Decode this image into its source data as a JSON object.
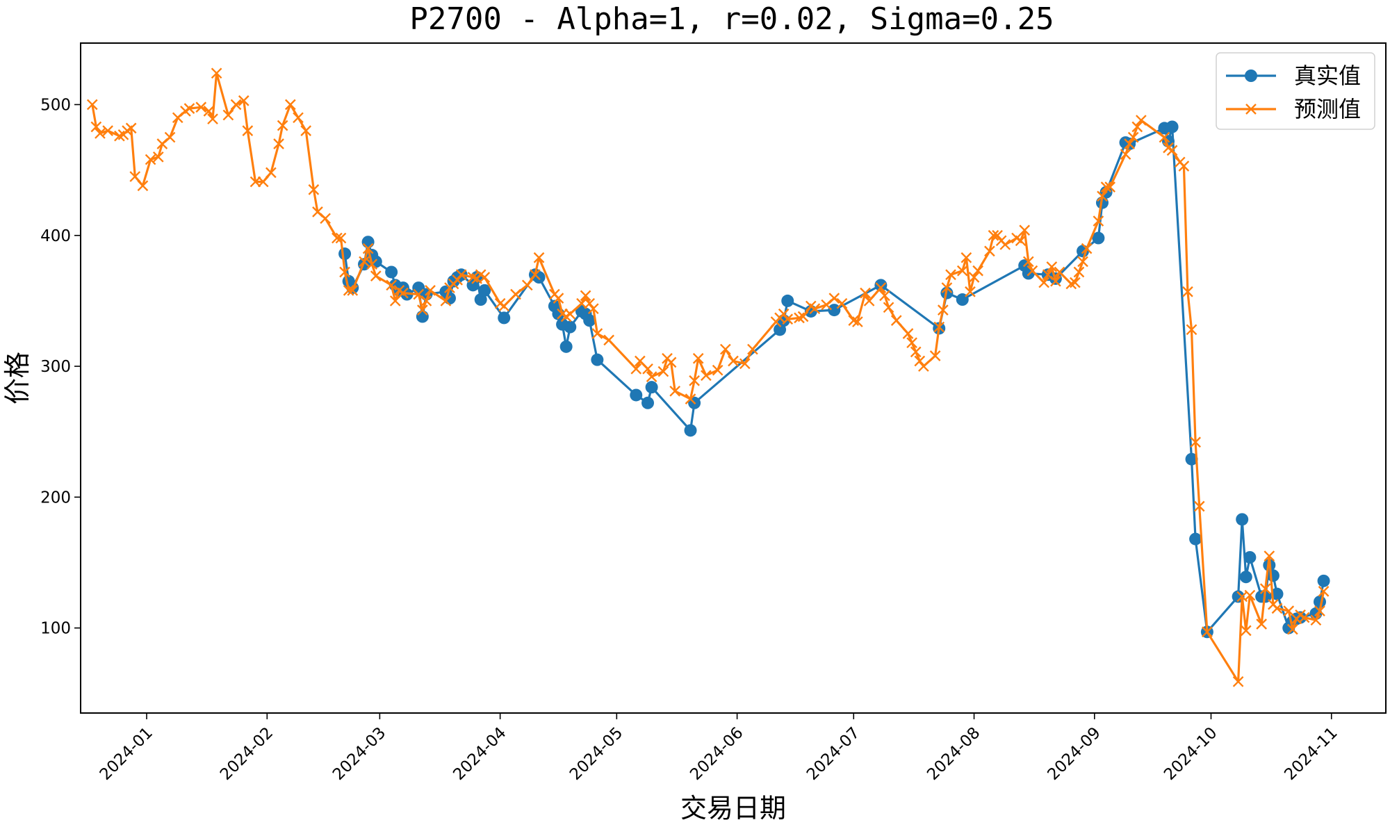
{
  "chart_data": {
    "type": "line",
    "title": "P2700 - Alpha=1, r=0.02, Sigma=0.25",
    "xlabel": "交易日期",
    "ylabel": "价格",
    "xlim": [
      "2023-12-15",
      "2024-11-15"
    ],
    "ylim": [
      35,
      547
    ],
    "x_ticks": [
      "2024-01-01",
      "2024-02-01",
      "2024-03-01",
      "2024-04-01",
      "2024-05-01",
      "2024-06-01",
      "2024-07-01",
      "2024-08-01",
      "2024-09-01",
      "2024-10-01",
      "2024-11-01"
    ],
    "x_tick_labels": [
      "2024-01",
      "2024-02",
      "2024-03",
      "2024-04",
      "2024-05",
      "2024-06",
      "2024-07",
      "2024-08",
      "2024-09",
      "2024-10",
      "2024-11"
    ],
    "y_ticks": [
      100,
      200,
      300,
      400,
      500
    ],
    "grid": false,
    "legend_position": "top-right",
    "series": [
      {
        "name": "真实值",
        "color": "#1f77b4",
        "marker": "circle",
        "points": [
          [
            "2024-02-21",
            386
          ],
          [
            "2024-02-22",
            365
          ],
          [
            "2024-02-23",
            360
          ],
          [
            "2024-02-26",
            378
          ],
          [
            "2024-02-27",
            395
          ],
          [
            "2024-02-28",
            385
          ],
          [
            "2024-02-29",
            380
          ],
          [
            "2024-03-04",
            372
          ],
          [
            "2024-03-05",
            362
          ],
          [
            "2024-03-06",
            358
          ],
          [
            "2024-03-07",
            360
          ],
          [
            "2024-03-08",
            355
          ],
          [
            "2024-03-11",
            360
          ],
          [
            "2024-03-12",
            338
          ],
          [
            "2024-03-13",
            355
          ],
          [
            "2024-03-18",
            357
          ],
          [
            "2024-03-19",
            352
          ],
          [
            "2024-03-20",
            365
          ],
          [
            "2024-03-21",
            368
          ],
          [
            "2024-03-22",
            370
          ],
          [
            "2024-03-25",
            362
          ],
          [
            "2024-03-26",
            368
          ],
          [
            "2024-03-27",
            351
          ],
          [
            "2024-03-28",
            358
          ],
          [
            "2024-04-02",
            337
          ],
          [
            "2024-04-10",
            370
          ],
          [
            "2024-04-11",
            368
          ],
          [
            "2024-04-15",
            346
          ],
          [
            "2024-04-16",
            340
          ],
          [
            "2024-04-17",
            332
          ],
          [
            "2024-04-18",
            315
          ],
          [
            "2024-04-19",
            330
          ],
          [
            "2024-04-22",
            342
          ],
          [
            "2024-04-23",
            340
          ],
          [
            "2024-04-24",
            335
          ],
          [
            "2024-04-26",
            305
          ],
          [
            "2024-05-06",
            278
          ],
          [
            "2024-05-09",
            272
          ],
          [
            "2024-05-10",
            284
          ],
          [
            "2024-05-20",
            251
          ],
          [
            "2024-05-21",
            272
          ],
          [
            "2024-06-12",
            328
          ],
          [
            "2024-06-13",
            335
          ],
          [
            "2024-06-14",
            350
          ],
          [
            "2024-06-20",
            342
          ],
          [
            "2024-06-26",
            343
          ],
          [
            "2024-07-08",
            362
          ],
          [
            "2024-07-23",
            329
          ],
          [
            "2024-07-25",
            356
          ],
          [
            "2024-07-29",
            351
          ],
          [
            "2024-08-14",
            377
          ],
          [
            "2024-08-15",
            371
          ],
          [
            "2024-08-20",
            370
          ],
          [
            "2024-08-22",
            367
          ],
          [
            "2024-08-29",
            388
          ],
          [
            "2024-09-02",
            398
          ],
          [
            "2024-09-03",
            425
          ],
          [
            "2024-09-04",
            433
          ],
          [
            "2024-09-09",
            471
          ],
          [
            "2024-09-10",
            470
          ],
          [
            "2024-09-19",
            482
          ],
          [
            "2024-09-20",
            472
          ],
          [
            "2024-09-21",
            483
          ],
          [
            "2024-09-26",
            229
          ],
          [
            "2024-09-27",
            168
          ],
          [
            "2024-09-30",
            97
          ],
          [
            "2024-10-08",
            124
          ],
          [
            "2024-10-09",
            183
          ],
          [
            "2024-10-10",
            139
          ],
          [
            "2024-10-11",
            154
          ],
          [
            "2024-10-14",
            124
          ],
          [
            "2024-10-15",
            124
          ],
          [
            "2024-10-16",
            148
          ],
          [
            "2024-10-17",
            140
          ],
          [
            "2024-10-18",
            126
          ],
          [
            "2024-10-21",
            100
          ],
          [
            "2024-10-22",
            105
          ],
          [
            "2024-10-23",
            107
          ],
          [
            "2024-10-24",
            108
          ],
          [
            "2024-10-28",
            111
          ],
          [
            "2024-10-29",
            120
          ],
          [
            "2024-10-30",
            136
          ]
        ]
      },
      {
        "name": "预测值",
        "color": "#ff7f0e",
        "marker": "x",
        "points": [
          [
            "2023-12-18",
            500
          ],
          [
            "2023-12-19",
            483
          ],
          [
            "2023-12-20",
            478
          ],
          [
            "2023-12-22",
            480
          ],
          [
            "2023-12-25",
            476
          ],
          [
            "2023-12-26",
            477
          ],
          [
            "2023-12-27",
            480
          ],
          [
            "2023-12-28",
            482
          ],
          [
            "2023-12-29",
            445
          ],
          [
            "2023-12-31",
            438
          ],
          [
            "2024-01-02",
            458
          ],
          [
            "2024-01-04",
            460
          ],
          [
            "2024-01-05",
            470
          ],
          [
            "2024-01-07",
            475
          ],
          [
            "2024-01-09",
            490
          ],
          [
            "2024-01-11",
            495
          ],
          [
            "2024-01-12",
            497
          ],
          [
            "2024-01-15",
            498
          ],
          [
            "2024-01-17",
            495
          ],
          [
            "2024-01-18",
            489
          ],
          [
            "2024-01-19",
            524
          ],
          [
            "2024-01-22",
            492
          ],
          [
            "2024-01-24",
            500
          ],
          [
            "2024-01-26",
            503
          ],
          [
            "2024-01-27",
            480
          ],
          [
            "2024-01-29",
            441
          ],
          [
            "2024-01-31",
            441
          ],
          [
            "2024-02-02",
            448
          ],
          [
            "2024-02-04",
            470
          ],
          [
            "2024-02-05",
            484
          ],
          [
            "2024-02-07",
            500
          ],
          [
            "2024-02-09",
            490
          ],
          [
            "2024-02-11",
            480
          ],
          [
            "2024-02-13",
            435
          ],
          [
            "2024-02-14",
            418
          ],
          [
            "2024-02-16",
            413
          ],
          [
            "2024-02-19",
            398
          ],
          [
            "2024-02-20",
            398
          ],
          [
            "2024-02-21",
            372
          ],
          [
            "2024-02-22",
            358
          ],
          [
            "2024-02-23",
            358
          ],
          [
            "2024-02-26",
            380
          ],
          [
            "2024-02-27",
            390
          ],
          [
            "2024-02-28",
            378
          ],
          [
            "2024-02-29",
            369
          ],
          [
            "2024-03-04",
            362
          ],
          [
            "2024-03-05",
            350
          ],
          [
            "2024-03-06",
            358
          ],
          [
            "2024-03-07",
            356
          ],
          [
            "2024-03-11",
            355
          ],
          [
            "2024-03-12",
            343
          ],
          [
            "2024-03-13",
            350
          ],
          [
            "2024-03-14",
            358
          ],
          [
            "2024-03-18",
            350
          ],
          [
            "2024-03-19",
            360
          ],
          [
            "2024-03-20",
            363
          ],
          [
            "2024-03-21",
            366
          ],
          [
            "2024-03-22",
            370
          ],
          [
            "2024-03-25",
            368
          ],
          [
            "2024-03-26",
            367
          ],
          [
            "2024-03-27",
            370
          ],
          [
            "2024-03-28",
            368
          ],
          [
            "2024-04-01",
            348
          ],
          [
            "2024-04-02",
            346
          ],
          [
            "2024-04-05",
            355
          ],
          [
            "2024-04-08",
            362
          ],
          [
            "2024-04-10",
            370
          ],
          [
            "2024-04-11",
            383
          ],
          [
            "2024-04-15",
            355
          ],
          [
            "2024-04-16",
            352
          ],
          [
            "2024-04-17",
            340
          ],
          [
            "2024-04-18",
            338
          ],
          [
            "2024-04-19",
            340
          ],
          [
            "2024-04-22",
            348
          ],
          [
            "2024-04-23",
            354
          ],
          [
            "2024-04-24",
            348
          ],
          [
            "2024-04-25",
            344
          ],
          [
            "2024-04-26",
            325
          ],
          [
            "2024-04-29",
            320
          ],
          [
            "2024-05-06",
            298
          ],
          [
            "2024-05-07",
            304
          ],
          [
            "2024-05-09",
            298
          ],
          [
            "2024-05-10",
            292
          ],
          [
            "2024-05-13",
            296
          ],
          [
            "2024-05-14",
            306
          ],
          [
            "2024-05-15",
            303
          ],
          [
            "2024-05-16",
            281
          ],
          [
            "2024-05-20",
            275
          ],
          [
            "2024-05-21",
            289
          ],
          [
            "2024-05-22",
            306
          ],
          [
            "2024-05-24",
            293
          ],
          [
            "2024-05-27",
            297
          ],
          [
            "2024-05-29",
            313
          ],
          [
            "2024-05-31",
            304
          ],
          [
            "2024-06-03",
            302
          ],
          [
            "2024-06-05",
            313
          ],
          [
            "2024-06-11",
            334
          ],
          [
            "2024-06-12",
            337
          ],
          [
            "2024-06-13",
            340
          ],
          [
            "2024-06-14",
            336
          ],
          [
            "2024-06-17",
            337
          ],
          [
            "2024-06-18",
            338
          ],
          [
            "2024-06-20",
            346
          ],
          [
            "2024-06-21",
            344
          ],
          [
            "2024-06-24",
            347
          ],
          [
            "2024-06-26",
            352
          ],
          [
            "2024-06-28",
            348
          ],
          [
            "2024-07-01",
            335
          ],
          [
            "2024-07-02",
            334
          ],
          [
            "2024-07-04",
            356
          ],
          [
            "2024-07-05",
            350
          ],
          [
            "2024-07-08",
            360
          ],
          [
            "2024-07-09",
            354
          ],
          [
            "2024-07-10",
            345
          ],
          [
            "2024-07-12",
            335
          ],
          [
            "2024-07-15",
            325
          ],
          [
            "2024-07-16",
            318
          ],
          [
            "2024-07-17",
            311
          ],
          [
            "2024-07-18",
            304
          ],
          [
            "2024-07-19",
            300
          ],
          [
            "2024-07-22",
            308
          ],
          [
            "2024-07-23",
            330
          ],
          [
            "2024-07-24",
            343
          ],
          [
            "2024-07-25",
            360
          ],
          [
            "2024-07-26",
            370
          ],
          [
            "2024-07-29",
            373
          ],
          [
            "2024-07-30",
            383
          ],
          [
            "2024-07-31",
            357
          ],
          [
            "2024-08-01",
            368
          ],
          [
            "2024-08-02",
            373
          ],
          [
            "2024-08-05",
            388
          ],
          [
            "2024-08-06",
            400
          ],
          [
            "2024-08-07",
            400
          ],
          [
            "2024-08-08",
            396
          ],
          [
            "2024-08-09",
            393
          ],
          [
            "2024-08-12",
            398
          ],
          [
            "2024-08-13",
            396
          ],
          [
            "2024-08-14",
            404
          ],
          [
            "2024-08-15",
            380
          ],
          [
            "2024-08-16",
            373
          ],
          [
            "2024-08-19",
            364
          ],
          [
            "2024-08-20",
            370
          ],
          [
            "2024-08-21",
            376
          ],
          [
            "2024-08-22",
            365
          ],
          [
            "2024-08-23",
            372
          ],
          [
            "2024-08-26",
            363
          ],
          [
            "2024-08-27",
            364
          ],
          [
            "2024-08-28",
            372
          ],
          [
            "2024-08-29",
            380
          ],
          [
            "2024-08-30",
            390
          ],
          [
            "2024-09-02",
            411
          ],
          [
            "2024-09-03",
            430
          ],
          [
            "2024-09-04",
            437
          ],
          [
            "2024-09-05",
            437
          ],
          [
            "2024-09-09",
            462
          ],
          [
            "2024-09-10",
            470
          ],
          [
            "2024-09-11",
            475
          ],
          [
            "2024-09-12",
            483
          ],
          [
            "2024-09-13",
            488
          ],
          [
            "2024-09-19",
            475
          ],
          [
            "2024-09-20",
            467
          ],
          [
            "2024-09-21",
            465
          ],
          [
            "2024-09-23",
            456
          ],
          [
            "2024-09-24",
            453
          ],
          [
            "2024-09-25",
            357
          ],
          [
            "2024-09-26",
            328
          ],
          [
            "2024-09-27",
            242
          ],
          [
            "2024-09-28",
            193
          ],
          [
            "2024-09-30",
            97
          ],
          [
            "2024-10-08",
            59
          ],
          [
            "2024-10-09",
            124
          ],
          [
            "2024-10-10",
            98
          ],
          [
            "2024-10-11",
            125
          ],
          [
            "2024-10-14",
            103
          ],
          [
            "2024-10-15",
            130
          ],
          [
            "2024-10-16",
            155
          ],
          [
            "2024-10-17",
            118
          ],
          [
            "2024-10-18",
            115
          ],
          [
            "2024-10-21",
            113
          ],
          [
            "2024-10-22",
            99
          ],
          [
            "2024-10-23",
            107
          ],
          [
            "2024-10-24",
            110
          ],
          [
            "2024-10-25",
            108
          ],
          [
            "2024-10-28",
            106
          ],
          [
            "2024-10-29",
            113
          ],
          [
            "2024-10-30",
            128
          ]
        ]
      }
    ]
  }
}
